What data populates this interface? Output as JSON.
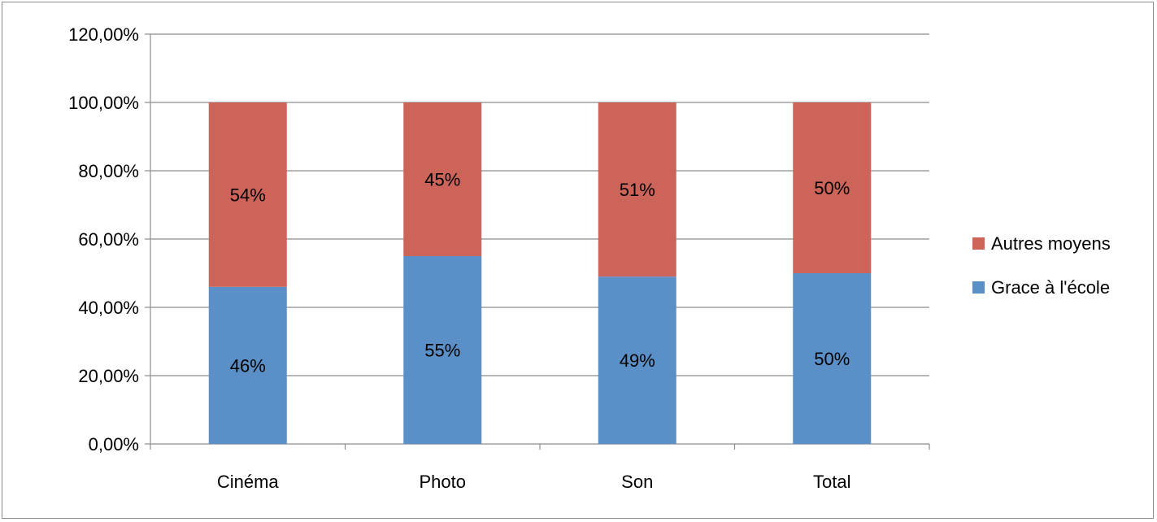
{
  "chart_data": {
    "type": "bar",
    "stacked": true,
    "title": "",
    "xlabel": "",
    "ylabel": "",
    "categories": [
      "Cinéma",
      "Photo",
      "Son",
      "Total"
    ],
    "series": [
      {
        "name": "Grace à l'école",
        "color": "#5b8fc7",
        "values": [
          46,
          55,
          49,
          50
        ],
        "labels": [
          "46%",
          "55%",
          "49%",
          "50%"
        ]
      },
      {
        "name": "Autres moyens",
        "color": "#cc645a",
        "values": [
          54,
          45,
          51,
          50
        ],
        "labels": [
          "54%",
          "45%",
          "51%",
          "50%"
        ]
      }
    ],
    "ylim": [
      0,
      120
    ],
    "yticks": [
      0,
      20,
      40,
      60,
      80,
      100,
      120
    ],
    "ytick_labels": [
      "0,00%",
      "20,00%",
      "40,00%",
      "60,00%",
      "80,00%",
      "100,00%",
      "120,00%"
    ],
    "grid": true,
    "legend_position": "right"
  }
}
